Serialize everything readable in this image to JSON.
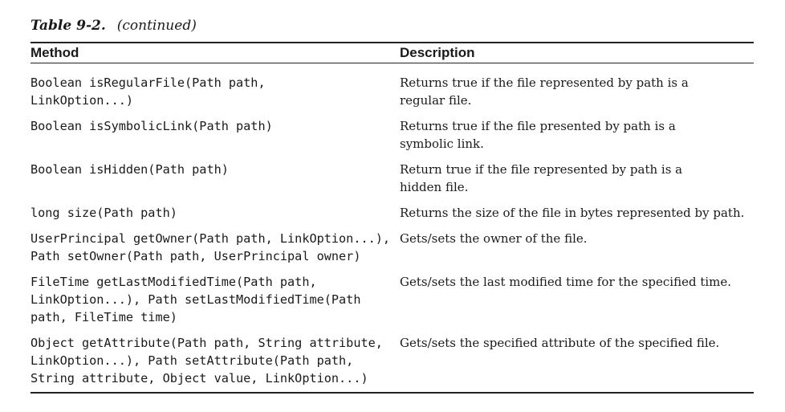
{
  "caption": {
    "label": "Table 9-2.",
    "note": "(continued)"
  },
  "table": {
    "headers": {
      "method": "Method",
      "description": "Description"
    },
    "rows": [
      {
        "method": "Boolean isRegularFile(Path path,\nLinkOption...)",
        "description": "Returns true if the file represented by path is a\nregular file."
      },
      {
        "method": "Boolean isSymbolicLink(Path path)",
        "description": "Returns true if the file presented by path is a\nsymbolic link."
      },
      {
        "method": "Boolean isHidden(Path path)",
        "description": "Return true if the file represented by path is a\nhidden file."
      },
      {
        "method": "long size(Path path)",
        "description": "Returns the size of the file in bytes represented by path."
      },
      {
        "method": "UserPrincipal getOwner(Path path, LinkOption...),\nPath setOwner(Path path, UserPrincipal owner)",
        "description": "Gets/sets the owner of the file."
      },
      {
        "method": "FileTime getLastModifiedTime(Path path,\nLinkOption...), Path setLastModifiedTime(Path\npath, FileTime time)",
        "description": "Gets/sets the last modified time for the specified time."
      },
      {
        "method": "Object getAttribute(Path path, String attribute,\nLinkOption...), Path setAttribute(Path path,\nString attribute, Object value, LinkOption...)",
        "description": "Gets/sets the specified attribute of the specified file."
      }
    ]
  }
}
